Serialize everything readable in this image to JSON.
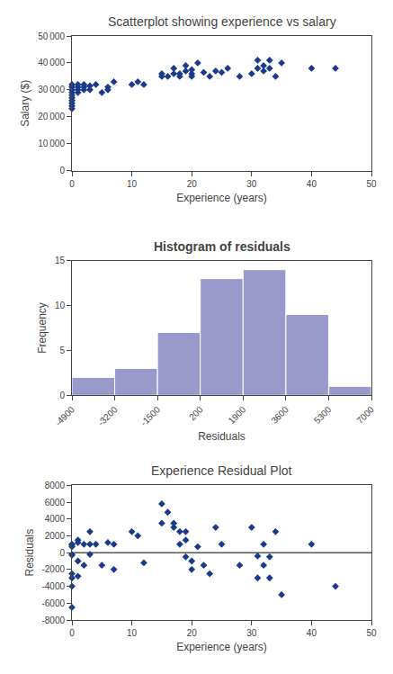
{
  "chart_data": [
    {
      "type": "scatter",
      "title": "Scatterplot showing experience vs salary",
      "xlabel": "Experience (years)",
      "ylabel": "Salary ($)",
      "x": [
        0,
        0,
        0,
        0,
        0,
        0,
        0,
        0,
        0,
        0,
        1,
        1,
        1,
        1,
        2,
        2,
        2,
        3,
        3,
        4,
        5,
        6,
        6,
        7,
        10,
        11,
        12,
        15,
        15,
        16,
        17,
        17,
        18,
        18,
        19,
        19,
        20,
        20,
        20,
        21,
        22,
        23,
        24,
        25,
        26,
        28,
        30,
        31,
        31,
        32,
        32,
        33,
        33,
        34,
        35,
        40,
        44
      ],
      "values": [
        23000,
        24000,
        25000,
        26000,
        27000,
        28000,
        29000,
        30000,
        31000,
        32000,
        29000,
        30000,
        31000,
        32000,
        30000,
        31000,
        32000,
        30000,
        31500,
        32000,
        29000,
        30000,
        31000,
        33000,
        32000,
        33000,
        32000,
        35000,
        36000,
        35000,
        36000,
        38000,
        35000,
        36000,
        37000,
        39000,
        36000,
        37500,
        35000,
        40000,
        36500,
        35000,
        37000,
        36500,
        38000,
        35000,
        36000,
        38000,
        41000,
        37000,
        39000,
        38000,
        41000,
        35000,
        40000,
        38000,
        38000
      ],
      "color": "#1a3a8c",
      "marker": "diamond",
      "xlim": [
        0,
        50
      ],
      "ylim": [
        0,
        50000
      ],
      "xticks": [
        0,
        10,
        20,
        30,
        40,
        50
      ],
      "yticks": [
        0,
        {
          "value": 10000,
          "label": "10 000"
        },
        {
          "value": 20000,
          "label": "20 000"
        },
        {
          "value": 30000,
          "label": "30 000"
        },
        {
          "value": 40000,
          "label": "40 000"
        },
        {
          "value": 50000,
          "label": "50 000"
        }
      ],
      "grid": false
    },
    {
      "type": "histogram",
      "title": "Histogram of residuals",
      "xlabel": "Residuals",
      "ylabel": "Frequency",
      "bins": [
        -4900,
        -3200,
        -1500,
        200,
        1900,
        3600,
        5300,
        7000
      ],
      "values": [
        2,
        3,
        7,
        13,
        14,
        9,
        1
      ],
      "color": "#9999cc",
      "xlim": [
        -4900,
        7000
      ],
      "xticks": [
        -4900,
        -3200,
        -1500,
        200,
        1900,
        3600,
        5300,
        7000
      ],
      "ylim": [
        0,
        15
      ],
      "yticks": [
        0,
        5,
        10,
        15
      ],
      "grid": false
    },
    {
      "type": "scatter",
      "title": "Experience Residual Plot",
      "xlabel": "Experience (years)",
      "ylabel": "Residuals",
      "x": [
        0,
        0,
        0,
        0,
        0,
        0,
        0,
        0,
        0,
        1,
        1,
        1,
        1,
        2,
        2,
        3,
        3,
        3,
        4,
        5,
        6,
        7,
        7,
        10,
        11,
        12,
        15,
        15,
        16,
        17,
        17,
        18,
        18,
        19,
        19,
        19,
        20,
        20,
        21,
        22,
        23,
        24,
        25,
        28,
        30,
        31,
        31,
        32,
        32,
        33,
        33,
        34,
        35,
        40,
        44
      ],
      "values": [
        1000,
        900,
        700,
        -200,
        -300,
        -2500,
        -3000,
        -4000,
        -6500,
        1500,
        1200,
        -1000,
        -2800,
        1000,
        -1500,
        2500,
        1000,
        -200,
        1000,
        -1500,
        1200,
        1000,
        -2000,
        2500,
        2000,
        -1200,
        5800,
        3500,
        4800,
        3000,
        3500,
        2500,
        1000,
        2500,
        1500,
        -500,
        -1000,
        -2000,
        700,
        -1500,
        -2500,
        3000,
        1000,
        -1500,
        3000,
        -400,
        -3000,
        1000,
        -1500,
        -3000,
        -500,
        2500,
        -5000,
        1000,
        -4000
      ],
      "color": "#1a3a8c",
      "marker": "diamond",
      "hline": 0,
      "xlim": [
        0,
        50
      ],
      "ylim": [
        -8000,
        8000
      ],
      "xticks": [
        0,
        10,
        20,
        30,
        40,
        50
      ],
      "yticks": [
        -8000,
        -6000,
        -4000,
        -2000,
        0,
        2000,
        4000,
        6000,
        8000
      ],
      "grid": false
    }
  ]
}
